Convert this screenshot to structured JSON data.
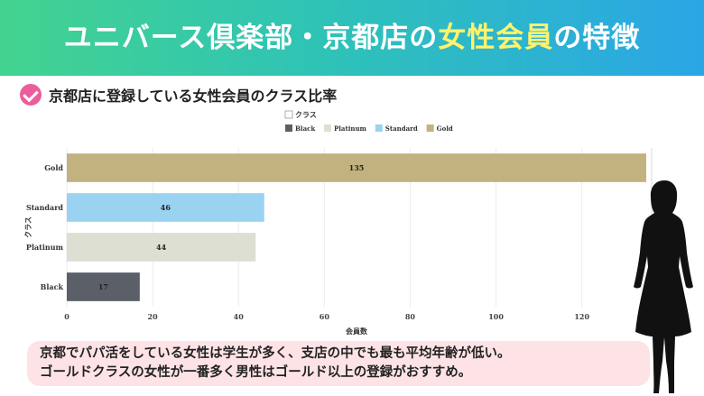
{
  "header": {
    "title_part1": "ユニバース倶楽部・京都店の",
    "title_highlight": "女性会員",
    "title_part2": "の特徴"
  },
  "subheading": "京都店に登録している女性会員のクラス比率",
  "chart_data": {
    "type": "bar",
    "orientation": "horizontal",
    "legend_title": "クラス",
    "legend": [
      "Black",
      "Platinum",
      "Standard",
      "Gold"
    ],
    "categories": [
      "Gold",
      "Standard",
      "Platinum",
      "Black"
    ],
    "values": [
      135,
      46,
      44,
      17
    ],
    "colors": {
      "Gold": "#c2b280",
      "Standard": "#9ad2f1",
      "Platinum": "#dedfd3",
      "Black": "#5b6068"
    },
    "xlabel": "会員数",
    "ylabel": "クラス",
    "xlim": [
      0,
      135
    ],
    "xticks": [
      0,
      20,
      40,
      60,
      80,
      100,
      120
    ],
    "grid": true,
    "legend_position": "top"
  },
  "note": {
    "line1": "京都でパパ活をしている女性は学生が多く、支店の中でも最も平均年齢が低い。",
    "line2": "ゴールドクラスの女性が一番多く男性はゴールド以上の登録がおすすめ。"
  }
}
